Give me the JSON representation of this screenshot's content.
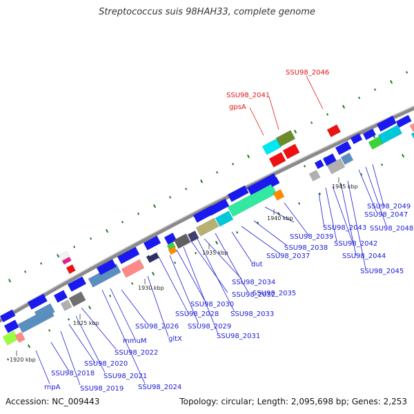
{
  "title": "Streptococcus suis 98HAH33, complete genome",
  "accession": "Accession: NC_009443",
  "topology": "Topology: circular; Length: 2,095,698 bp; Genes: 2,253",
  "colors": {
    "backbone": "#8a8a8a",
    "gene_forward": "#1a1af0",
    "gene_highlight": "#ee1111",
    "label_text": "#1a1ad6",
    "label_highlight": "#e21515",
    "gc_tick": "#1a7a1a"
  },
  "kbp_markers": [
    {
      "label": "1920 kbp"
    },
    {
      "label": "1925 kbp"
    },
    {
      "label": "1930 kbp"
    },
    {
      "label": "1935 kbp"
    },
    {
      "label": "1940 kbp"
    },
    {
      "label": "1945 kbp"
    }
  ],
  "gene_labels": [
    {
      "label": "rnpA",
      "color": "blue"
    },
    {
      "label": "SSU98_2018",
      "color": "blue"
    },
    {
      "label": "SSU98_2019",
      "color": "blue"
    },
    {
      "label": "SSU98_2020",
      "color": "blue"
    },
    {
      "label": "SSU98_2021",
      "color": "blue"
    },
    {
      "label": "SSU98_2022",
      "color": "blue"
    },
    {
      "label": "SSU98_2024",
      "color": "blue"
    },
    {
      "label": "mmuM",
      "color": "blue"
    },
    {
      "label": "SSU98_2026",
      "color": "blue"
    },
    {
      "label": "gltX",
      "color": "blue"
    },
    {
      "label": "SSU98_2028",
      "color": "blue"
    },
    {
      "label": "SSU98_2029",
      "color": "blue"
    },
    {
      "label": "SSU98_2030",
      "color": "blue"
    },
    {
      "label": "SSU98_2031",
      "color": "blue"
    },
    {
      "label": "SSU98_2032",
      "color": "blue"
    },
    {
      "label": "SSU98_2033",
      "color": "blue"
    },
    {
      "label": "SSU98_2034",
      "color": "blue"
    },
    {
      "label": "SSU98_2035",
      "color": "blue"
    },
    {
      "label": "dut",
      "color": "blue"
    },
    {
      "label": "SSU98_2037",
      "color": "blue"
    },
    {
      "label": "SSU98_2038",
      "color": "blue"
    },
    {
      "label": "SSU98_2039",
      "color": "blue"
    },
    {
      "label": "SSU98_2043",
      "color": "blue"
    },
    {
      "label": "SSU98_2042",
      "color": "blue"
    },
    {
      "label": "SSU98_2044",
      "color": "blue"
    },
    {
      "label": "SSU98_2045",
      "color": "blue"
    },
    {
      "label": "SSU98_2047",
      "color": "blue"
    },
    {
      "label": "SSU98_2048",
      "color": "blue"
    },
    {
      "label": "SSU98_2049",
      "color": "blue"
    },
    {
      "label": "SSU98_2041",
      "color": "red"
    },
    {
      "label": "gpsA",
      "color": "red"
    },
    {
      "label": "SSU98_2046",
      "color": "red"
    }
  ]
}
